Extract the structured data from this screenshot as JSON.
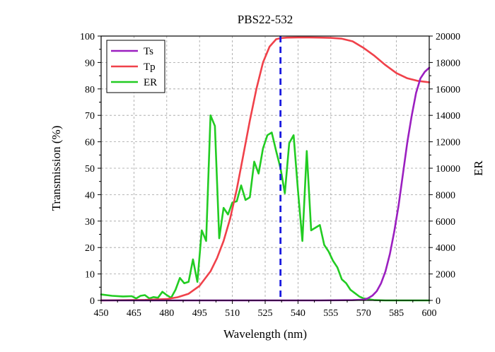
{
  "chart_data": {
    "type": "line",
    "title": "PBS22-532",
    "xlabel": "Wavelength (nm)",
    "ylabel": "Transmission (%)",
    "y2label": "ER",
    "xlim": [
      450,
      600
    ],
    "ylim": [
      0,
      100
    ],
    "y2lim": [
      0,
      20000
    ],
    "xticks": [
      450,
      465,
      480,
      495,
      510,
      525,
      540,
      555,
      570,
      585,
      600
    ],
    "yticks": [
      0,
      10,
      20,
      30,
      40,
      50,
      60,
      70,
      80,
      90,
      100
    ],
    "y2ticks": [
      0,
      2000,
      4000,
      6000,
      8000,
      10000,
      12000,
      14000,
      16000,
      18000,
      20000
    ],
    "grid": true,
    "legend_position": "top-left",
    "reference_line": {
      "x": 532,
      "color": "#1a1adf",
      "style": "dashed"
    },
    "series": [
      {
        "name": "Ts",
        "axis": "left",
        "color": "#9b1fc0",
        "x": [
          450,
          500,
          550,
          565,
          570,
          572,
          574,
          576,
          578,
          580,
          582,
          584,
          586,
          588,
          590,
          592,
          594,
          596,
          598,
          600
        ],
        "y": [
          0,
          0,
          0,
          0.1,
          0.3,
          0.8,
          1.8,
          3.5,
          6.5,
          11,
          17.5,
          26,
          36,
          48,
          60,
          70,
          78.5,
          84,
          86.5,
          88
        ]
      },
      {
        "name": "Tp",
        "axis": "left",
        "color": "#f0414a",
        "x": [
          450,
          470,
          480,
          485,
          490,
          495,
          500,
          503,
          506,
          509,
          512,
          515,
          518,
          521,
          524,
          527,
          530,
          532,
          535,
          540,
          545,
          550,
          555,
          560,
          565,
          570,
          575,
          580,
          585,
          590,
          595,
          600
        ],
        "y": [
          0,
          0.2,
          0.5,
          1.2,
          2.5,
          5.5,
          11,
          16,
          22.5,
          31,
          42,
          55,
          68,
          80,
          90,
          96,
          98.8,
          99.2,
          99.4,
          99.5,
          99.5,
          99.4,
          99.3,
          99,
          98,
          95.5,
          92.5,
          89,
          86,
          84,
          83,
          82.5
        ]
      },
      {
        "name": "ER",
        "axis": "right",
        "color": "#22cc22",
        "x": [
          450,
          455,
          460,
          464,
          466,
          468,
          470,
          472,
          474,
          476,
          478,
          480,
          482,
          484,
          486,
          488,
          490,
          492,
          494,
          496,
          498,
          500,
          502,
          504,
          506,
          508,
          510,
          512,
          514,
          516,
          518,
          520,
          522,
          524,
          526,
          528,
          530,
          532,
          534,
          536,
          538,
          540,
          542,
          544,
          546,
          548,
          550,
          552,
          554,
          556,
          558,
          560,
          562,
          564,
          566,
          568,
          570,
          575,
          580,
          600
        ],
        "y": [
          450,
          350,
          300,
          320,
          150,
          350,
          400,
          150,
          250,
          200,
          650,
          400,
          200,
          800,
          1700,
          1300,
          1400,
          3100,
          1400,
          5300,
          4500,
          14000,
          13200,
          4700,
          7000,
          6500,
          7400,
          7500,
          8700,
          7600,
          7800,
          10500,
          9600,
          11500,
          12500,
          12700,
          11300,
          10000,
          8100,
          11900,
          12500,
          8300,
          4500,
          11300,
          5300,
          5500,
          5700,
          4200,
          3700,
          3000,
          2500,
          1600,
          1300,
          800,
          550,
          300,
          150,
          20,
          0,
          0
        ]
      }
    ]
  }
}
